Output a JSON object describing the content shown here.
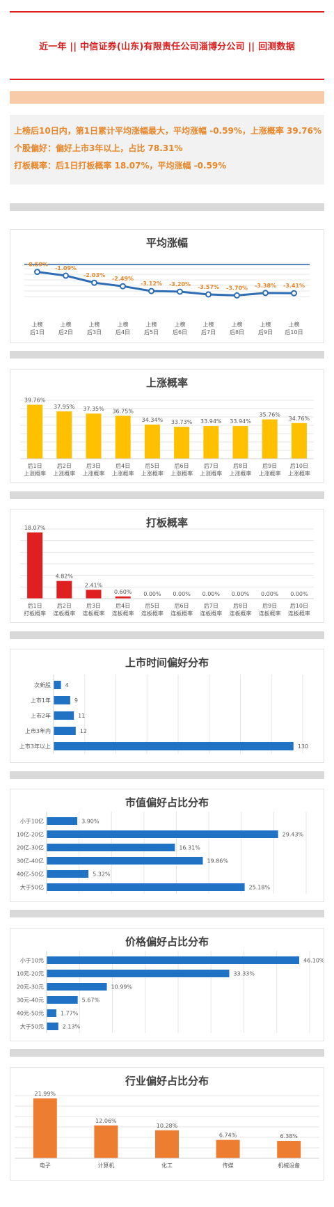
{
  "header": {
    "title": "近一年  ||  中信证券(山东)有限责任公司淄博分公司  ||  回测数据"
  },
  "summary": {
    "line1": "上榜后10日内，第1日累计平均涨幅最大，平均涨幅 -0.59%，上涨概率 39.76%",
    "line2": "个股偏好：偏好上市3年以上，占比 78.31%",
    "line3": "打板概率：后1日打板概率 18.07%，平均涨幅 -0.59%"
  },
  "colors": {
    "accent_red": "#e02020",
    "orange_text": "#e8862a",
    "line_blue": "#2e6db4",
    "ref_line": "#1f5fa8",
    "bar_yellow": "#ffc000",
    "bar_red": "#e02020",
    "bar_blue": "#1f72c4",
    "bar_orange": "#ed7d31"
  },
  "chart_data": [
    {
      "id": "avg-change",
      "type": "line",
      "title": "平均涨幅",
      "categories": [
        [
          "上榜",
          "后1日"
        ],
        [
          "上榜",
          "后2日"
        ],
        [
          "上榜",
          "后3日"
        ],
        [
          "上榜",
          "后4日"
        ],
        [
          "上榜",
          "后5日"
        ],
        [
          "上榜",
          "后6日"
        ],
        [
          "上榜",
          "后7日"
        ],
        [
          "上榜",
          "后8日"
        ],
        [
          "上榜",
          "后9日"
        ],
        [
          "上榜",
          "后10日"
        ]
      ],
      "values": [
        -0.59,
        -1.09,
        -2.03,
        -2.49,
        -3.12,
        -3.2,
        -3.57,
        -3.7,
        -3.38,
        -3.41
      ],
      "labels": [
        "-0.59%",
        "-1.09%",
        "-2.03%",
        "-2.49%",
        "-3.12%",
        "-3.20%",
        "-3.57%",
        "-3.70%",
        "-3.38%",
        "-3.41%"
      ],
      "reference": 0,
      "ylim": [
        -4.4,
        0.2
      ],
      "grid": true
    },
    {
      "id": "up-prob",
      "type": "bar",
      "title": "上涨概率",
      "categories": [
        [
          "后1日",
          "上涨概率"
        ],
        [
          "后2日",
          "上涨概率"
        ],
        [
          "后3日",
          "上涨概率"
        ],
        [
          "后4日",
          "上涨概率"
        ],
        [
          "后5日",
          "上涨概率"
        ],
        [
          "后6日",
          "上涨概率"
        ],
        [
          "后7日",
          "上涨概率"
        ],
        [
          "后8日",
          "上涨概率"
        ],
        [
          "后9日",
          "上涨概率"
        ],
        [
          "后10日",
          "上涨概率"
        ]
      ],
      "values": [
        39.76,
        37.95,
        37.35,
        36.75,
        34.34,
        33.73,
        33.94,
        33.94,
        35.76,
        34.76
      ],
      "labels": [
        "39.76%",
        "37.95%",
        "37.35%",
        "36.75%",
        "34.34%",
        "33.73%",
        "33.94%",
        "33.94%",
        "35.76%",
        "34.76%"
      ],
      "ylim": [
        25,
        41
      ],
      "color": "#ffc000",
      "grid": true
    },
    {
      "id": "board-prob",
      "type": "bar",
      "title": "打板概率",
      "categories": [
        [
          "后1日",
          "打板概率"
        ],
        [
          "后2日",
          "连板概率"
        ],
        [
          "后3日",
          "连板概率"
        ],
        [
          "后4日",
          "连板概率"
        ],
        [
          "后5日",
          "连板概率"
        ],
        [
          "后6日",
          "连板概率"
        ],
        [
          "后7日",
          "连板概率"
        ],
        [
          "后8日",
          "连板概率"
        ],
        [
          "后9日",
          "连板概率"
        ],
        [
          "后10日",
          "连板概率"
        ]
      ],
      "values": [
        18.07,
        4.82,
        2.41,
        0.6,
        0,
        0,
        0,
        0,
        0,
        0
      ],
      "labels": [
        "18.07%",
        "4.82%",
        "2.41%",
        "0.60%",
        "0.00%",
        "0.00%",
        "0.00%",
        "0.00%",
        "0.00%",
        "0.00%"
      ],
      "ylim": [
        0,
        19
      ],
      "color": "#e02020",
      "grid": true
    },
    {
      "id": "listing-time",
      "type": "bar",
      "orientation": "horizontal",
      "title": "上市时间偏好分布",
      "categories": [
        "次新股",
        "上市1年",
        "上市2年",
        "上市3年内",
        "上市3年以上"
      ],
      "values": [
        4,
        9,
        11,
        12,
        130
      ],
      "labels": [
        "4",
        "9",
        "11",
        "12",
        "130"
      ],
      "xlim": [
        0,
        135
      ],
      "color": "#1f72c4",
      "grid": true
    },
    {
      "id": "market-cap",
      "type": "bar",
      "orientation": "horizontal",
      "title": "市值偏好占比分布",
      "categories": [
        "小于10亿",
        "10亿-20亿",
        "20亿-30亿",
        "30亿-40亿",
        "40亿-50亿",
        "大于50亿"
      ],
      "values": [
        3.9,
        29.43,
        16.31,
        19.86,
        5.32,
        25.18
      ],
      "labels": [
        "3.90%",
        "29.43%",
        "16.31%",
        "19.86%",
        "5.32%",
        "25.18%"
      ],
      "xlim": [
        0,
        33
      ],
      "color": "#1f72c4",
      "grid": true
    },
    {
      "id": "price",
      "type": "bar",
      "orientation": "horizontal",
      "title": "价格偏好占比分布",
      "categories": [
        "小于10元",
        "10元-20元",
        "20元-30元",
        "30元-40元",
        "40元-50元",
        "大于50元"
      ],
      "values": [
        46.1,
        33.33,
        10.99,
        5.67,
        1.77,
        2.13
      ],
      "labels": [
        "46.10%",
        "33.33%",
        "10.99%",
        "5.67%",
        "1.77%",
        "2.13%"
      ],
      "xlim": [
        0,
        48
      ],
      "color": "#1f72c4",
      "grid": true
    },
    {
      "id": "industry",
      "type": "bar",
      "title": "行业偏好占比分布",
      "categories": [
        "电子",
        "计算机",
        "化工",
        "传媒",
        "机械设备"
      ],
      "values": [
        21.99,
        12.06,
        10.28,
        6.74,
        6.38
      ],
      "labels": [
        "21.99%",
        "12.06%",
        "10.28%",
        "6.74%",
        "6.38%"
      ],
      "ylim": [
        0,
        23
      ],
      "color": "#ed7d31",
      "grid": true
    }
  ]
}
